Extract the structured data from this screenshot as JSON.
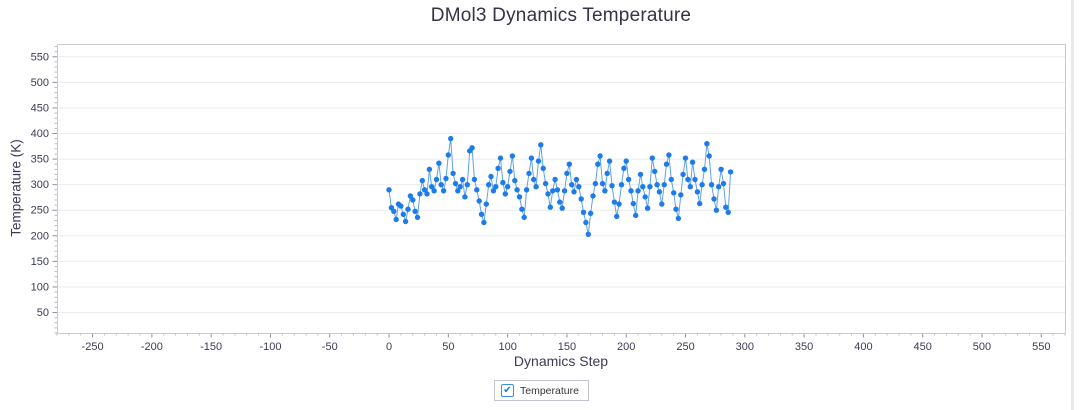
{
  "chart": {
    "title": "DMol3 Dynamics Temperature",
    "x_label": "Dynamics Step",
    "y_label": "Temperature (K)"
  },
  "legend": {
    "label": "Temperature",
    "checked": true,
    "check_glyph": "✔"
  },
  "colors": {
    "point": "#1d7ce8",
    "line": "#5ea2ec",
    "grid": "#ebebf0",
    "plot_border": "#cacad4",
    "tick_major": "#8f8f9b",
    "tick_minor": "#b9b9c3",
    "tick_label": "#3b3b55",
    "title_text": "#333349"
  },
  "chart_data": {
    "type": "line",
    "title": "DMol3 Dynamics Temperature",
    "xlabel": "Dynamics Step",
    "ylabel": "Temperature (K)",
    "xlim": [
      -280,
      570
    ],
    "ylim": [
      10,
      575
    ],
    "x_major_ticks": [
      -250,
      -200,
      -150,
      -100,
      -50,
      0,
      50,
      100,
      150,
      200,
      250,
      300,
      350,
      400,
      450,
      500,
      550
    ],
    "y_major_ticks": [
      50,
      100,
      150,
      200,
      250,
      300,
      350,
      400,
      450,
      500,
      550
    ],
    "minor_tick_step": 10,
    "grid": "horizontal",
    "legend_position": "bottom",
    "legend_entries": [
      "Temperature"
    ],
    "series": [
      {
        "name": "Temperature",
        "x_start": 0,
        "x_step": 2,
        "values": [
          290,
          255,
          248,
          232,
          262,
          258,
          242,
          228,
          252,
          278,
          270,
          248,
          236,
          282,
          308,
          290,
          282,
          330,
          296,
          288,
          310,
          342,
          300,
          288,
          312,
          358,
          390,
          322,
          302,
          288,
          296,
          310,
          276,
          300,
          366,
          372,
          310,
          290,
          268,
          242,
          226,
          262,
          300,
          316,
          288,
          296,
          332,
          352,
          304,
          282,
          296,
          326,
          356,
          308,
          290,
          276,
          252,
          236,
          290,
          322,
          352,
          310,
          296,
          346,
          378,
          332,
          302,
          282,
          256,
          288,
          310,
          290,
          266,
          254,
          288,
          322,
          340,
          300,
          286,
          310,
          296,
          272,
          246,
          226,
          203,
          244,
          278,
          302,
          340,
          356,
          302,
          288,
          322,
          346,
          298,
          266,
          238,
          262,
          300,
          332,
          346,
          310,
          288,
          263,
          240,
          288,
          320,
          296,
          276,
          254,
          296,
          352,
          326,
          300,
          286,
          262,
          300,
          340,
          358,
          310,
          284,
          252,
          234,
          280,
          320,
          352,
          310,
          296,
          344,
          310,
          286,
          263,
          300,
          330,
          380,
          356,
          300,
          272,
          250,
          296,
          330,
          302,
          256,
          246,
          325
        ]
      }
    ]
  }
}
